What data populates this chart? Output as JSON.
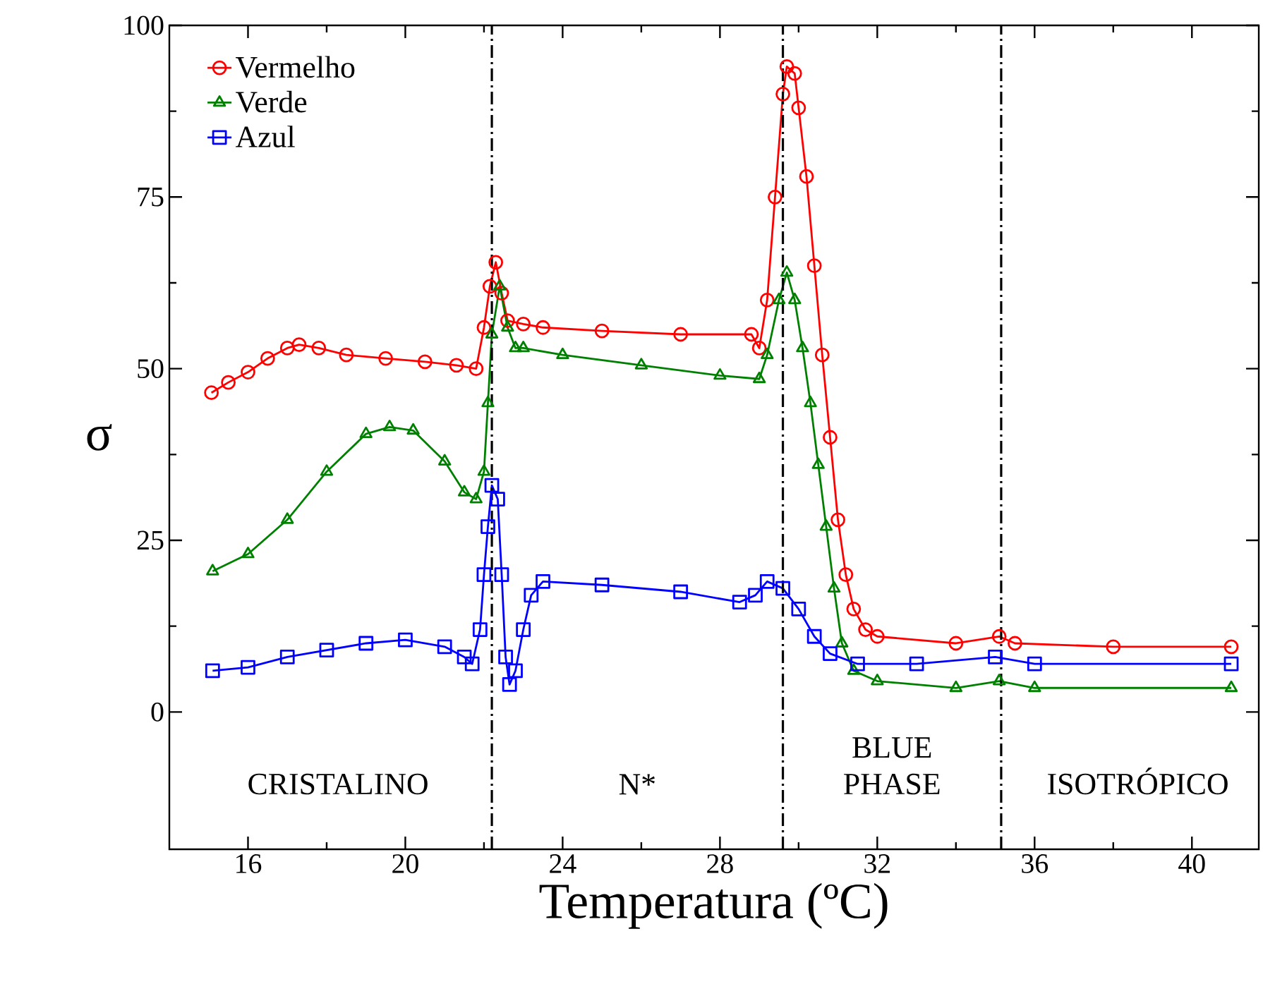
{
  "chart_data": {
    "type": "line",
    "xlabel": "Temperatura (ºC)",
    "ylabel": "σ",
    "xlim": [
      14,
      41.7
    ],
    "ylim": [
      -20,
      100
    ],
    "xticks": [
      16,
      20,
      24,
      28,
      32,
      36,
      40
    ],
    "yticks": [
      0,
      25,
      50,
      75,
      100
    ],
    "legend": "top left",
    "grid": false,
    "line_style": "solid",
    "series": [
      {
        "name": "Vermelho",
        "color": "#ff0000",
        "marker": "circle",
        "x": [
          15.07,
          15.5,
          16,
          16.5,
          17,
          17.3,
          17.8,
          18.5,
          19.5,
          20.5,
          21.3,
          21.8,
          22.0,
          22.15,
          22.3,
          22.45,
          22.6,
          23.0,
          23.5,
          25,
          27,
          28.8,
          29.0,
          29.2,
          29.4,
          29.6,
          29.7,
          29.9,
          30.0,
          30.2,
          30.4,
          30.6,
          30.8,
          31.0,
          31.2,
          31.4,
          31.7,
          32,
          34,
          35.1,
          35.5,
          38,
          41
        ],
        "values": [
          46.5,
          48,
          49.5,
          51.5,
          53,
          53.5,
          53,
          52,
          51.5,
          51,
          50.5,
          50,
          56,
          62,
          65.5,
          61,
          57,
          56.5,
          56,
          55.5,
          55,
          55,
          53,
          60,
          75,
          90,
          94,
          93,
          88,
          78,
          65,
          52,
          40,
          28,
          20,
          15,
          12,
          11,
          10,
          11,
          10,
          9.5,
          9.5
        ]
      },
      {
        "name": "Verde",
        "color": "#008000",
        "marker": "triangle",
        "x": [
          15.1,
          16,
          17,
          18,
          19,
          19.6,
          20.2,
          21,
          21.5,
          21.8,
          22.0,
          22.1,
          22.2,
          22.4,
          22.6,
          22.8,
          23.0,
          24,
          26,
          28,
          29,
          29.2,
          29.5,
          29.7,
          29.9,
          30.1,
          30.3,
          30.5,
          30.7,
          30.9,
          31.1,
          31.4,
          32,
          34,
          35.1,
          36,
          41
        ],
        "values": [
          20.5,
          23,
          28,
          35,
          40.5,
          41.5,
          41,
          36.5,
          32,
          31,
          35,
          45,
          55,
          62,
          56,
          53,
          53,
          52,
          50.5,
          49,
          48.5,
          52,
          60,
          64,
          60,
          53,
          45,
          36,
          27,
          18,
          10,
          6,
          4.5,
          3.5,
          4.5,
          3.5,
          3.5
        ]
      },
      {
        "name": "Azul",
        "color": "#0000ff",
        "marker": "square",
        "x": [
          15.1,
          16,
          17,
          18,
          19,
          20,
          21,
          21.5,
          21.7,
          21.9,
          22.0,
          22.1,
          22.2,
          22.35,
          22.45,
          22.55,
          22.65,
          22.8,
          23.0,
          23.2,
          23.5,
          25,
          27,
          28.5,
          28.9,
          29.2,
          29.6,
          30.0,
          30.4,
          30.8,
          31.5,
          33,
          35,
          36,
          41
        ],
        "values": [
          6,
          6.5,
          8,
          9,
          10,
          10.5,
          9.5,
          8,
          7,
          12,
          20,
          27,
          33,
          31,
          20,
          8,
          4,
          6,
          12,
          17,
          19,
          18.5,
          17.5,
          16,
          17,
          19,
          18,
          15,
          11,
          8.5,
          7,
          7,
          8,
          7,
          7
        ]
      }
    ],
    "ref_lines": [
      {
        "axis": "x",
        "value": 22.2,
        "color": "#000000",
        "line_style": "dashdot"
      },
      {
        "axis": "x",
        "value": 29.6,
        "color": "#000000",
        "line_style": "dashdot"
      },
      {
        "axis": "x",
        "value": 35.15,
        "color": "#000000",
        "line_style": "dashdot"
      }
    ],
    "annotations": [
      "CRISTALINO",
      "N*",
      "BLUE PHASE",
      "ISOTRÓPICO"
    ]
  }
}
